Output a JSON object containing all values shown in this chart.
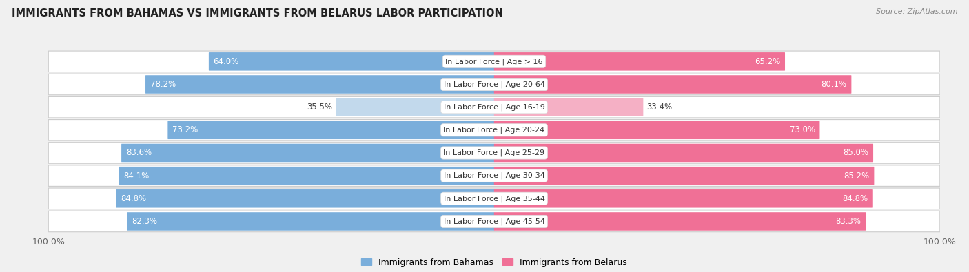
{
  "title": "IMMIGRANTS FROM BAHAMAS VS IMMIGRANTS FROM BELARUS LABOR PARTICIPATION",
  "source": "Source: ZipAtlas.com",
  "categories": [
    "In Labor Force | Age > 16",
    "In Labor Force | Age 20-64",
    "In Labor Force | Age 16-19",
    "In Labor Force | Age 20-24",
    "In Labor Force | Age 25-29",
    "In Labor Force | Age 30-34",
    "In Labor Force | Age 35-44",
    "In Labor Force | Age 45-54"
  ],
  "bahamas_values": [
    64.0,
    78.2,
    35.5,
    73.2,
    83.6,
    84.1,
    84.8,
    82.3
  ],
  "belarus_values": [
    65.2,
    80.1,
    33.4,
    73.0,
    85.0,
    85.2,
    84.8,
    83.3
  ],
  "bahamas_color": "#7aaedb",
  "bahamas_color_light": "#c2d9ec",
  "belarus_color": "#f07096",
  "belarus_color_light": "#f5b0c5",
  "background_color": "#f0f0f0",
  "row_bg_even": "#f8f8f8",
  "row_bg_odd": "#eeeeee",
  "bar_height": 0.72,
  "max_value": 100.0,
  "legend_bahamas": "Immigrants from Bahamas",
  "legend_belarus": "Immigrants from Belarus",
  "label_fontsize": 8.5,
  "cat_fontsize": 8.0,
  "title_fontsize": 10.5
}
